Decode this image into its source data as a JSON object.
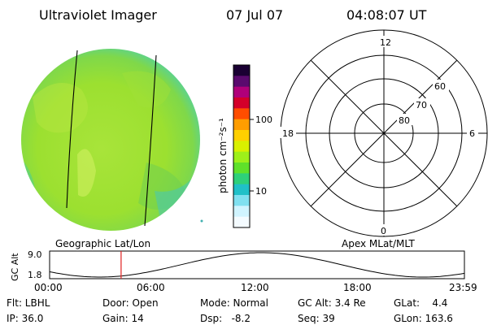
{
  "header": {
    "instrument": "Ultraviolet Imager",
    "date": "07 Jul 07",
    "time": "04:08:07 UT"
  },
  "colorbar": {
    "unit_label": "photon cm⁻²s⁻¹",
    "ticks": [
      {
        "label": "100",
        "value": 100
      },
      {
        "label": "10",
        "value": 10
      }
    ],
    "colors": [
      "#1a0033",
      "#5a0a6e",
      "#b0007a",
      "#d4002a",
      "#ff4d00",
      "#ff9d00",
      "#ffd000",
      "#d9f000",
      "#9ef01a",
      "#5fe12a",
      "#2ed07a",
      "#20c0c8",
      "#80e0f0",
      "#d0f4ff",
      "#f4fbff"
    ]
  },
  "polar_grid": {
    "lat_labels": [
      "80",
      "70",
      "60"
    ],
    "mlt_labels": {
      "top": "12",
      "bottom": "0",
      "left": "18",
      "right": "6"
    }
  },
  "timeline": {
    "left_title": "Geographic Lat/Lon",
    "right_title": "Apex MLat/MLT",
    "ylabel": "GC Alt",
    "ytick_top": "9.0",
    "ytick_bottom": "1.8",
    "x_ticks": [
      "00:00",
      "06:00",
      "12:00",
      "18:00",
      "23:59"
    ],
    "current_time_hours": 4.135
  },
  "status": {
    "flt": "Flt: LBHL",
    "ip": "IP: 36.0",
    "door": "Door: Open",
    "gain": "Gain: 14",
    "mode": "Mode: Normal",
    "dsp": "Dsp:   -8.2",
    "gcalt": "GC Alt: 3.4 Re",
    "seq": "Seq: 39",
    "glat": "GLat:    4.4",
    "glon": "GLon: 163.6"
  },
  "colors": {
    "disk_base": "#9be030",
    "disk_light": "#c8ee5a",
    "disk_cyan": "#40d0b0",
    "current_time_line": "#e02020"
  }
}
